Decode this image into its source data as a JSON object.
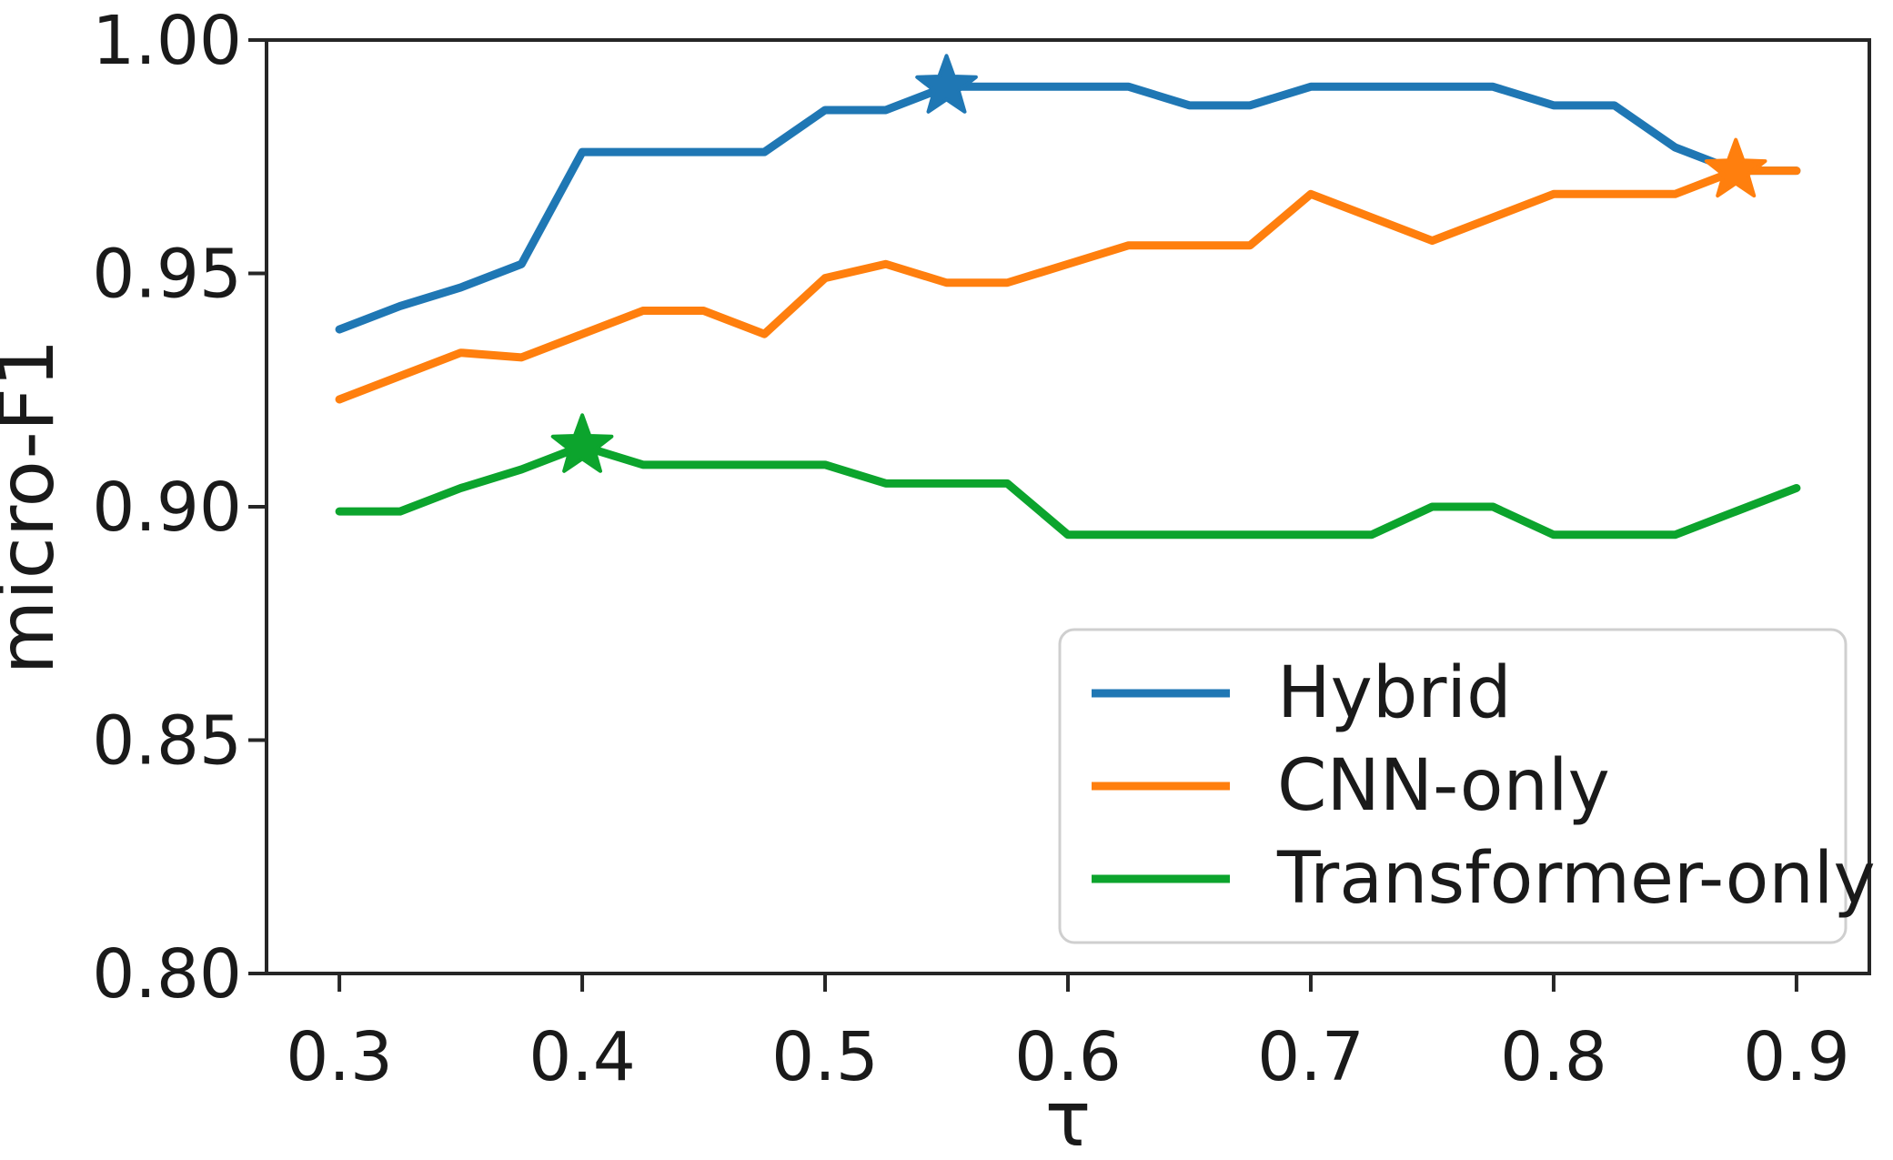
{
  "chart_data": {
    "type": "line",
    "title": "",
    "xlabel": "τ",
    "ylabel": "micro-F1",
    "xlim": [
      0.27,
      0.93
    ],
    "ylim": [
      0.8,
      1.0
    ],
    "x_ticks": [
      0.3,
      0.4,
      0.5,
      0.6,
      0.7,
      0.8,
      0.9
    ],
    "x_tick_labels": [
      "0.3",
      "0.4",
      "0.5",
      "0.6",
      "0.7",
      "0.8",
      "0.9"
    ],
    "y_ticks": [
      0.8,
      0.85,
      0.9,
      0.95,
      1.0
    ],
    "y_tick_labels": [
      "0.80",
      "0.85",
      "0.90",
      "0.95",
      "1.00"
    ],
    "grid": false,
    "legend_position": "lower right",
    "x": [
      0.3,
      0.325,
      0.35,
      0.375,
      0.4,
      0.425,
      0.45,
      0.475,
      0.5,
      0.525,
      0.55,
      0.575,
      0.6,
      0.625,
      0.65,
      0.675,
      0.7,
      0.725,
      0.75,
      0.775,
      0.8,
      0.825,
      0.85,
      0.875,
      0.9
    ],
    "series": [
      {
        "name": "Hybrid",
        "color": "#1f77b4",
        "values": [
          0.938,
          0.943,
          0.947,
          0.952,
          0.976,
          0.976,
          0.976,
          0.976,
          0.985,
          0.985,
          0.99,
          0.99,
          0.99,
          0.99,
          0.986,
          0.986,
          0.99,
          0.99,
          0.99,
          0.99,
          0.986,
          0.986,
          0.977,
          0.972,
          0.972
        ],
        "best": {
          "x": 0.55,
          "y": 0.99
        }
      },
      {
        "name": "CNN-only",
        "color": "#ff7f0e",
        "values": [
          0.923,
          0.928,
          0.933,
          0.932,
          0.937,
          0.942,
          0.942,
          0.937,
          0.949,
          0.952,
          0.948,
          0.948,
          0.952,
          0.956,
          0.956,
          0.956,
          0.967,
          0.962,
          0.957,
          0.962,
          0.967,
          0.967,
          0.967,
          0.972,
          0.972
        ],
        "best": {
          "x": 0.875,
          "y": 0.972
        }
      },
      {
        "name": "Transformer-only",
        "color": "#0ca42d",
        "values": [
          0.899,
          0.899,
          0.904,
          0.908,
          0.913,
          0.909,
          0.909,
          0.909,
          0.909,
          0.905,
          0.905,
          0.905,
          0.894,
          0.894,
          0.894,
          0.894,
          0.894,
          0.894,
          0.9,
          0.9,
          0.894,
          0.894,
          0.894,
          0.899,
          0.904
        ],
        "best": {
          "x": 0.4,
          "y": 0.913
        }
      }
    ]
  },
  "style": {
    "spine_color": "#262626",
    "text_color": "#1a1a1a",
    "legend_border_color": "#cfcfcf",
    "background": "#ffffff"
  }
}
